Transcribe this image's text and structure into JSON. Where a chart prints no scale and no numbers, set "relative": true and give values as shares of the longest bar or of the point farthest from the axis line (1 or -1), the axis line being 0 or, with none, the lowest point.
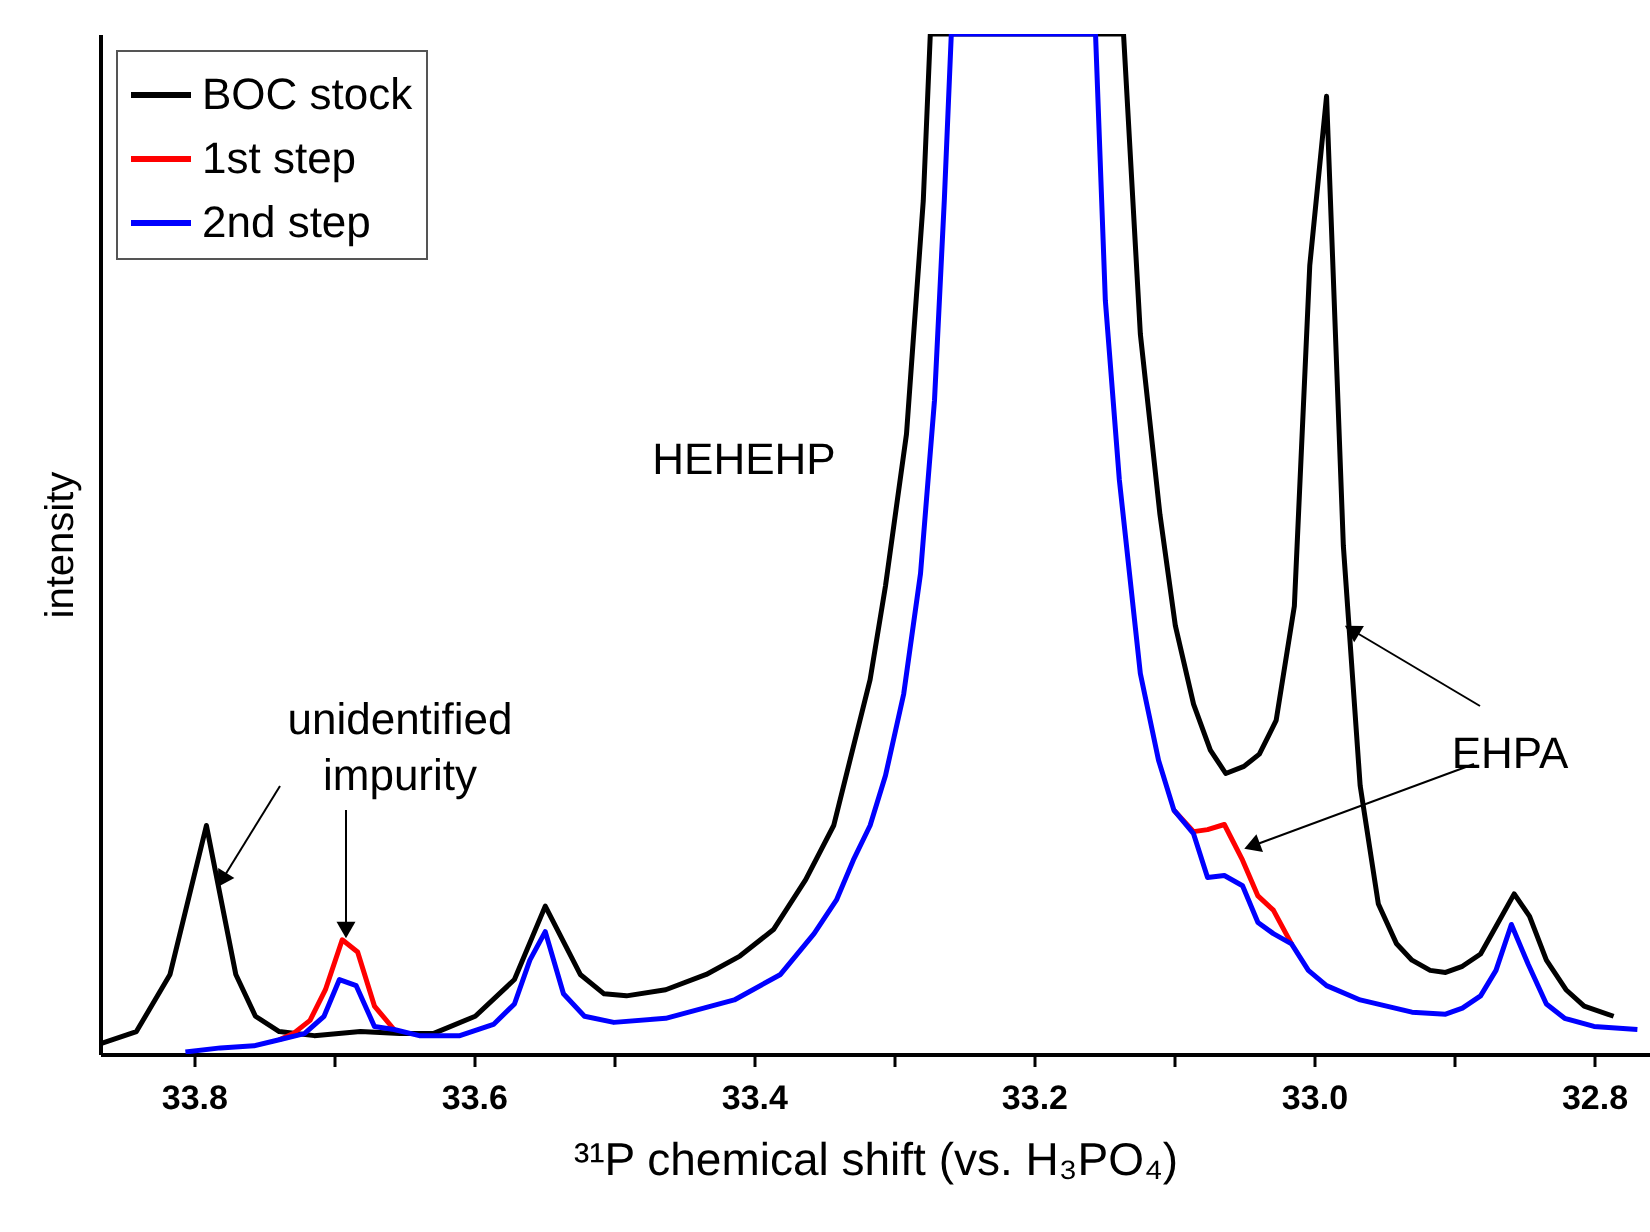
{
  "chart_data": {
    "type": "line",
    "relative": true,
    "xlabel": "³¹P chemical shift (vs. H₃PO₄)",
    "ylabel": "intensity",
    "xlim": [
      33.867,
      32.76
    ],
    "xticks": [
      33.8,
      {
        "value": 33.7,
        "label": null
      },
      33.6,
      {
        "value": 33.5,
        "label": null
      },
      33.4,
      {
        "value": 33.3,
        "label": null
      },
      33.2,
      {
        "value": 33.1,
        "label": null
      },
      {
        "value": 33.0,
        "label": "33.0"
      },
      {
        "value": 32.9,
        "label": null
      },
      32.8
    ],
    "grid": false,
    "legend": "top left",
    "marker": "none",
    "line_style": "solid",
    "annotations": [
      "HEHEHP",
      "unidentified impurity",
      "EHPA"
    ],
    "series": [
      {
        "name": "BOC stock",
        "color": "#000000",
        "x": [
          33.867,
          33.841,
          33.817,
          33.791,
          33.77,
          33.756,
          33.739,
          33.714,
          33.681,
          33.653,
          33.629,
          33.599,
          33.571,
          33.549,
          33.524,
          33.507,
          33.491,
          33.463,
          33.434,
          33.41,
          33.386,
          33.363,
          33.343,
          33.317,
          33.306,
          33.291,
          33.279,
          33.274,
          33.136,
          33.124,
          33.11,
          33.099,
          33.086,
          33.074,
          33.063,
          33.05,
          33.039,
          33.027,
          33.014,
          33.003,
          32.991,
          32.979,
          32.967,
          32.954,
          32.941,
          32.93,
          32.917,
          32.906,
          32.894,
          32.881,
          32.87,
          32.857,
          32.846,
          32.834,
          32.82,
          32.807,
          32.786
        ],
        "values": [
          0.01,
          0.022,
          0.078,
          0.224,
          0.078,
          0.037,
          0.022,
          0.018,
          0.022,
          0.02,
          0.02,
          0.037,
          0.073,
          0.145,
          0.078,
          0.059,
          0.057,
          0.063,
          0.078,
          0.096,
          0.122,
          0.171,
          0.224,
          0.367,
          0.459,
          0.608,
          0.837,
          1.0,
          1.0,
          0.706,
          0.529,
          0.42,
          0.343,
          0.298,
          0.275,
          0.282,
          0.294,
          0.327,
          0.439,
          0.773,
          0.939,
          0.498,
          0.263,
          0.147,
          0.108,
          0.092,
          0.082,
          0.08,
          0.086,
          0.098,
          0.125,
          0.157,
          0.135,
          0.092,
          0.063,
          0.047,
          0.037
        ]
      },
      {
        "name": "1st step",
        "color": "#ff0000",
        "x": [
          33.739,
          33.729,
          33.717,
          33.706,
          33.694,
          33.683,
          33.671,
          33.657,
          33.4,
          33.1,
          33.086,
          33.076,
          33.064,
          33.051,
          33.04,
          33.029,
          33.016
        ],
        "values": [
          0.014,
          0.02,
          0.033,
          0.063,
          0.112,
          0.1,
          0.047,
          0.024,
          null,
          0.239,
          0.218,
          0.22,
          0.225,
          0.19,
          0.155,
          0.141,
          0.108
        ]
      },
      {
        "name": "2nd step",
        "color": "#0000ff",
        "x": [
          33.806,
          33.781,
          33.757,
          33.739,
          33.721,
          33.707,
          33.696,
          33.684,
          33.671,
          33.657,
          33.639,
          33.61,
          33.586,
          33.571,
          33.56,
          33.549,
          33.536,
          33.521,
          33.5,
          33.463,
          33.414,
          33.381,
          33.357,
          33.341,
          33.329,
          33.317,
          33.306,
          33.293,
          33.281,
          33.271,
          33.264,
          33.259,
          33.156,
          33.149,
          33.139,
          33.124,
          33.111,
          33.1,
          33.086,
          33.076,
          33.064,
          33.051,
          33.04,
          33.029,
          33.016,
          33.004,
          32.991,
          32.967,
          32.93,
          32.906,
          32.894,
          32.881,
          32.87,
          32.859,
          32.847,
          32.834,
          32.821,
          32.8,
          32.769
        ],
        "values": [
          0.002,
          0.006,
          0.008,
          0.014,
          0.02,
          0.037,
          0.073,
          0.067,
          0.027,
          0.024,
          0.018,
          0.018,
          0.029,
          0.049,
          0.092,
          0.12,
          0.059,
          0.037,
          0.031,
          0.035,
          0.053,
          0.078,
          0.118,
          0.151,
          0.19,
          0.224,
          0.273,
          0.353,
          0.471,
          0.641,
          0.837,
          1.0,
          1.0,
          0.739,
          0.563,
          0.373,
          0.288,
          0.239,
          0.216,
          0.173,
          0.175,
          0.165,
          0.129,
          0.118,
          0.108,
          0.082,
          0.067,
          0.053,
          0.041,
          0.039,
          0.045,
          0.057,
          0.082,
          0.127,
          0.088,
          0.049,
          0.035,
          0.027,
          0.024
        ]
      }
    ]
  }
}
